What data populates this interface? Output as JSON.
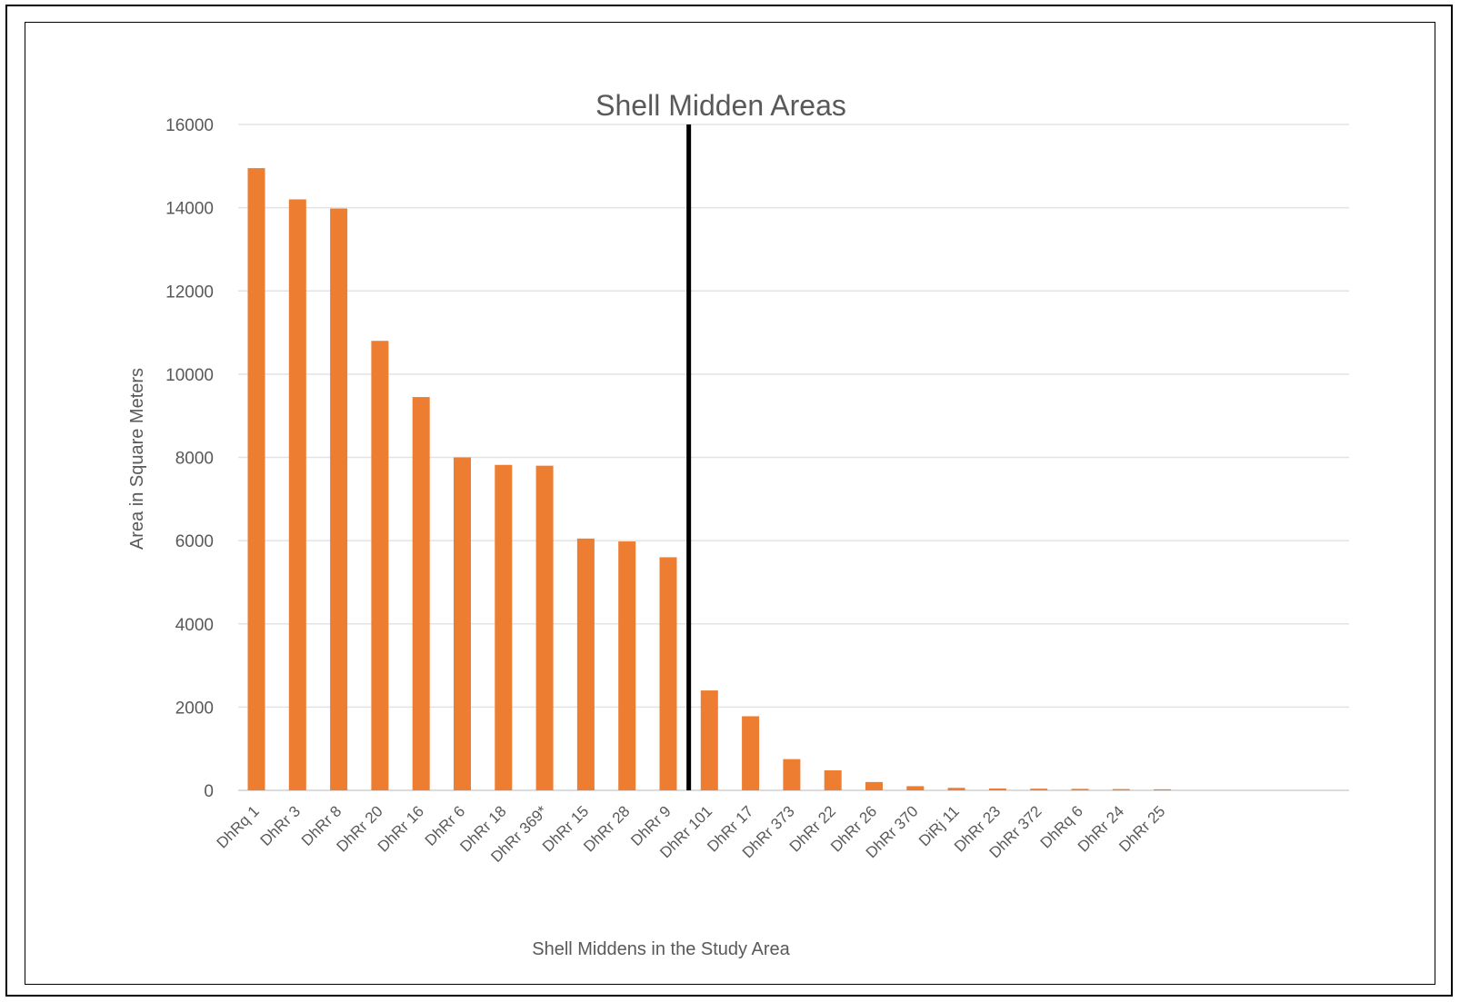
{
  "chart_data": {
    "type": "bar",
    "title": "Shell Midden Areas",
    "xlabel": "Shell Middens in the Study Area",
    "ylabel": "Area in Square Meters",
    "ylim": [
      0,
      16000
    ],
    "yticks": [
      0,
      2000,
      4000,
      6000,
      8000,
      10000,
      12000,
      14000,
      16000
    ],
    "grid": true,
    "legend": "none",
    "bar_color": "#ED7D31",
    "divider_after_category": "DhRr 9",
    "categories": [
      "DhRq 1",
      "DhRr 3",
      "DhRr 8",
      "DhRr 20",
      "DhRr 16",
      "DhRr 6",
      "DhRr 18",
      "DhRr 369*",
      "DhRr 15",
      "DhRr 28",
      "DhRr 9",
      "DhRr 101",
      "DhRr 17",
      "DhRr 373",
      "DhRr 22",
      "DhRr 26",
      "DhRr 370",
      "DiRj 11",
      "DhRr 23",
      "DhRr 372",
      "DhRq 6",
      "DhRr 24",
      "DhRr 25"
    ],
    "values": [
      14950,
      14200,
      13980,
      10800,
      9450,
      8000,
      7820,
      7800,
      6050,
      5980,
      5600,
      2400,
      1780,
      750,
      480,
      200,
      100,
      60,
      45,
      40,
      35,
      30,
      25
    ]
  }
}
